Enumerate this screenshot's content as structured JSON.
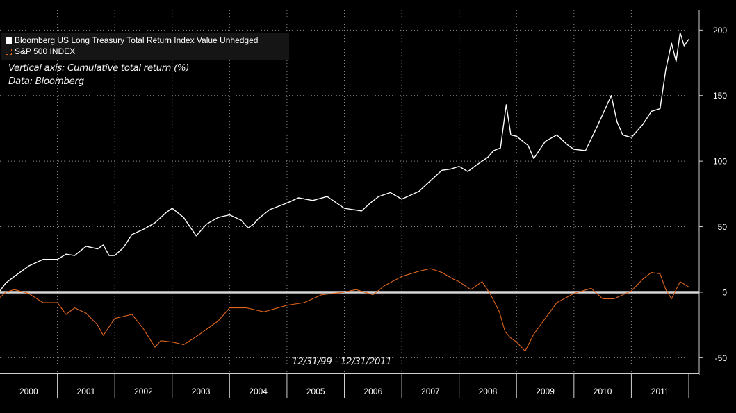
{
  "chart_data": {
    "type": "line",
    "xlim": [
      2000,
      2012
    ],
    "ylim": [
      -62,
      215
    ],
    "y_ticks": [
      -50,
      0,
      50,
      100,
      150,
      200
    ],
    "y_tick_labels": [
      "-50",
      "0",
      "50",
      "100",
      "150",
      "200"
    ],
    "x_tick_labels": [
      "2000",
      "2001",
      "2002",
      "2003",
      "2004",
      "2005",
      "2006",
      "2007",
      "2008",
      "2009",
      "2010",
      "2011"
    ],
    "grid": true,
    "legend_placement": "top-left",
    "annotations": {
      "vertical_axis": "Vertical axis: Cumulative total return (%)",
      "source": "Data: Bloomberg",
      "date_range": "12/31/99 - 12/31/2011"
    },
    "series": [
      {
        "name": "Bloomberg US Long Treasury Total Return Index Value Unhedged",
        "color": "#ffffff",
        "x": [
          2000.0,
          2000.1,
          2000.25,
          2000.5,
          2000.75,
          2001.0,
          2001.15,
          2001.3,
          2001.5,
          2001.7,
          2001.8,
          2001.9,
          2002.0,
          2002.15,
          2002.3,
          2002.5,
          2002.7,
          2002.9,
          2003.0,
          2003.2,
          2003.42,
          2003.5,
          2003.6,
          2003.8,
          2004.0,
          2004.2,
          2004.32,
          2004.42,
          2004.5,
          2004.7,
          2005.0,
          2005.2,
          2005.45,
          2005.7,
          2006.0,
          2006.3,
          2006.45,
          2006.6,
          2006.8,
          2007.0,
          2007.3,
          2007.45,
          2007.7,
          2007.85,
          2008.0,
          2008.15,
          2008.3,
          2008.5,
          2008.6,
          2008.72,
          2008.82,
          2008.9,
          2009.0,
          2009.2,
          2009.3,
          2009.5,
          2009.7,
          2009.9,
          2010.0,
          2010.2,
          2010.4,
          2010.65,
          2010.75,
          2010.85,
          2011.0,
          2011.2,
          2011.35,
          2011.5,
          2011.6,
          2011.7,
          2011.78,
          2011.85,
          2011.92,
          2012.0
        ],
        "values": [
          1,
          7,
          12,
          20,
          25,
          25,
          29,
          28,
          35,
          33,
          36,
          28,
          28,
          34,
          44,
          48,
          53,
          61,
          64,
          57,
          43,
          47,
          52,
          57,
          59,
          55,
          49,
          52,
          56,
          63,
          68,
          72,
          70,
          73,
          64,
          62,
          68,
          73,
          76,
          71,
          77,
          83,
          93,
          94,
          96,
          92,
          97,
          103,
          108,
          110,
          143,
          120,
          119,
          112,
          102,
          115,
          120,
          112,
          109,
          108,
          126,
          150,
          130,
          120,
          118,
          128,
          138,
          140,
          170,
          190,
          176,
          198,
          188,
          193
        ]
      },
      {
        "name": "S&P 500 INDEX",
        "color": "#e0661c",
        "x": [
          2000.0,
          2000.1,
          2000.25,
          2000.5,
          2000.75,
          2001.0,
          2001.15,
          2001.3,
          2001.5,
          2001.7,
          2001.8,
          2002.0,
          2002.3,
          2002.5,
          2002.7,
          2002.8,
          2003.0,
          2003.2,
          2003.45,
          2003.8,
          2004.0,
          2004.3,
          2004.6,
          2005.0,
          2005.3,
          2005.6,
          2006.0,
          2006.2,
          2006.5,
          2006.7,
          2007.0,
          2007.3,
          2007.5,
          2007.7,
          2007.9,
          2008.0,
          2008.2,
          2008.4,
          2008.55,
          2008.7,
          2008.8,
          2008.9,
          2009.0,
          2009.15,
          2009.3,
          2009.5,
          2009.7,
          2010.0,
          2010.3,
          2010.5,
          2010.7,
          2011.0,
          2011.2,
          2011.35,
          2011.5,
          2011.6,
          2011.7,
          2011.85,
          2012.0
        ],
        "values": [
          -4,
          0,
          2,
          -1,
          -8,
          -8,
          -17,
          -12,
          -16,
          -25,
          -33,
          -20,
          -17,
          -28,
          -42,
          -37,
          -38,
          -40,
          -33,
          -22,
          -12,
          -12,
          -15,
          -10,
          -8,
          -2,
          0,
          2,
          -2,
          5,
          12,
          16,
          18,
          15,
          10,
          8,
          2,
          8,
          -2,
          -15,
          -30,
          -35,
          -38,
          -45,
          -32,
          -20,
          -8,
          -1,
          3,
          -5,
          -5,
          1,
          10,
          15,
          14,
          2,
          -5,
          8,
          4
        ]
      }
    ]
  }
}
